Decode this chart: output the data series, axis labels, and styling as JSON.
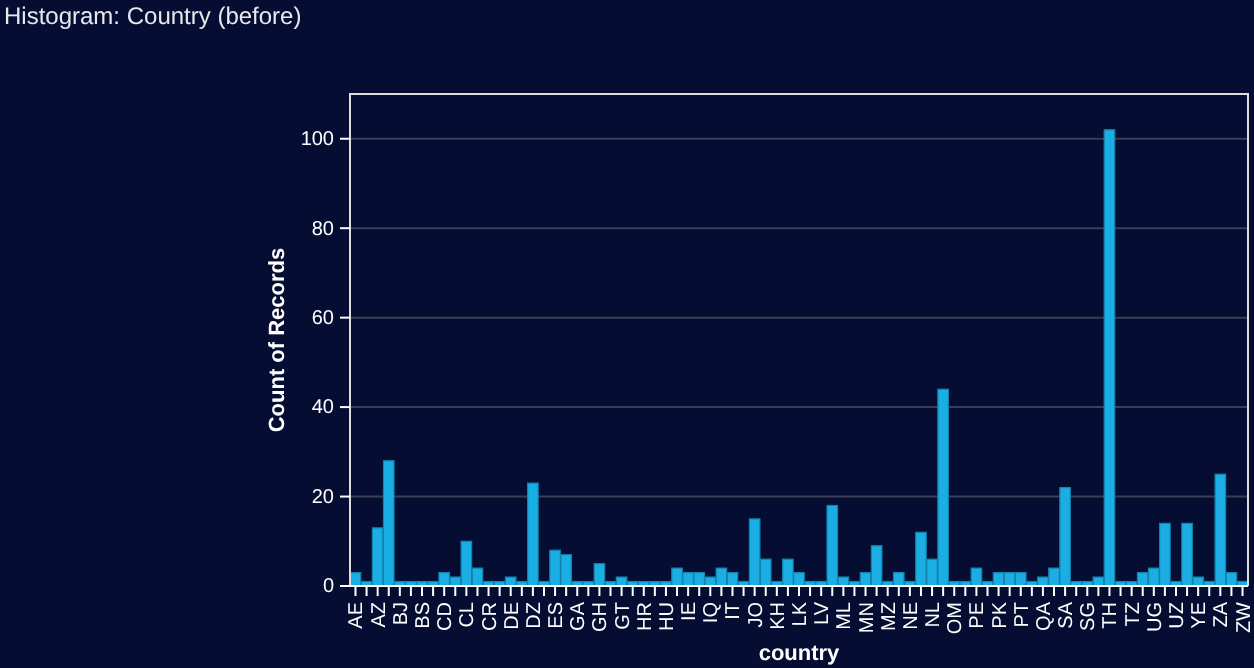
{
  "chart_data": {
    "type": "bar",
    "title": "Histogram: Country (before)",
    "xlabel": "country",
    "ylabel": "Count of Records",
    "categories": [
      "AE",
      null,
      "AZ",
      null,
      "BJ",
      null,
      "BS",
      null,
      "CD",
      null,
      "CL",
      null,
      "CR",
      null,
      "DE",
      null,
      "DZ",
      null,
      "ES",
      null,
      "GA",
      null,
      "GH",
      null,
      "GT",
      null,
      "HR",
      null,
      "HU",
      null,
      "IE",
      null,
      "IQ",
      null,
      "IT",
      null,
      "JO",
      null,
      "KH",
      null,
      "LK",
      null,
      "LV",
      null,
      "ML",
      null,
      "MN",
      null,
      "MZ",
      null,
      "NE",
      null,
      "NL",
      null,
      "OM",
      null,
      "PE",
      null,
      "PK",
      null,
      "PT",
      null,
      "QA",
      null,
      "SA",
      null,
      "SG",
      null,
      "TH",
      null,
      "TZ",
      null,
      "UG",
      null,
      "UZ",
      null,
      "YE",
      null,
      "ZA",
      null,
      "ZW"
    ],
    "values": [
      3,
      1,
      13,
      28,
      1,
      1,
      1,
      1,
      3,
      2,
      10,
      4,
      1,
      1,
      2,
      1,
      23,
      1,
      8,
      7,
      1,
      1,
      5,
      1,
      2,
      1,
      1,
      1,
      1,
      4,
      3,
      3,
      2,
      4,
      3,
      1,
      15,
      6,
      1,
      6,
      3,
      1,
      1,
      18,
      2,
      1,
      3,
      9,
      1,
      3,
      1,
      12,
      6,
      44,
      1,
      1,
      4,
      1,
      3,
      3,
      3,
      1,
      2,
      4,
      22,
      1,
      1,
      2,
      102,
      1,
      1,
      3,
      4,
      14,
      1,
      14,
      2,
      1,
      25,
      3,
      1
    ],
    "color": "#1aaee5",
    "ylim": [
      0,
      110
    ],
    "yticks": [
      0,
      20,
      40,
      60,
      80,
      100
    ],
    "grid": "y"
  }
}
